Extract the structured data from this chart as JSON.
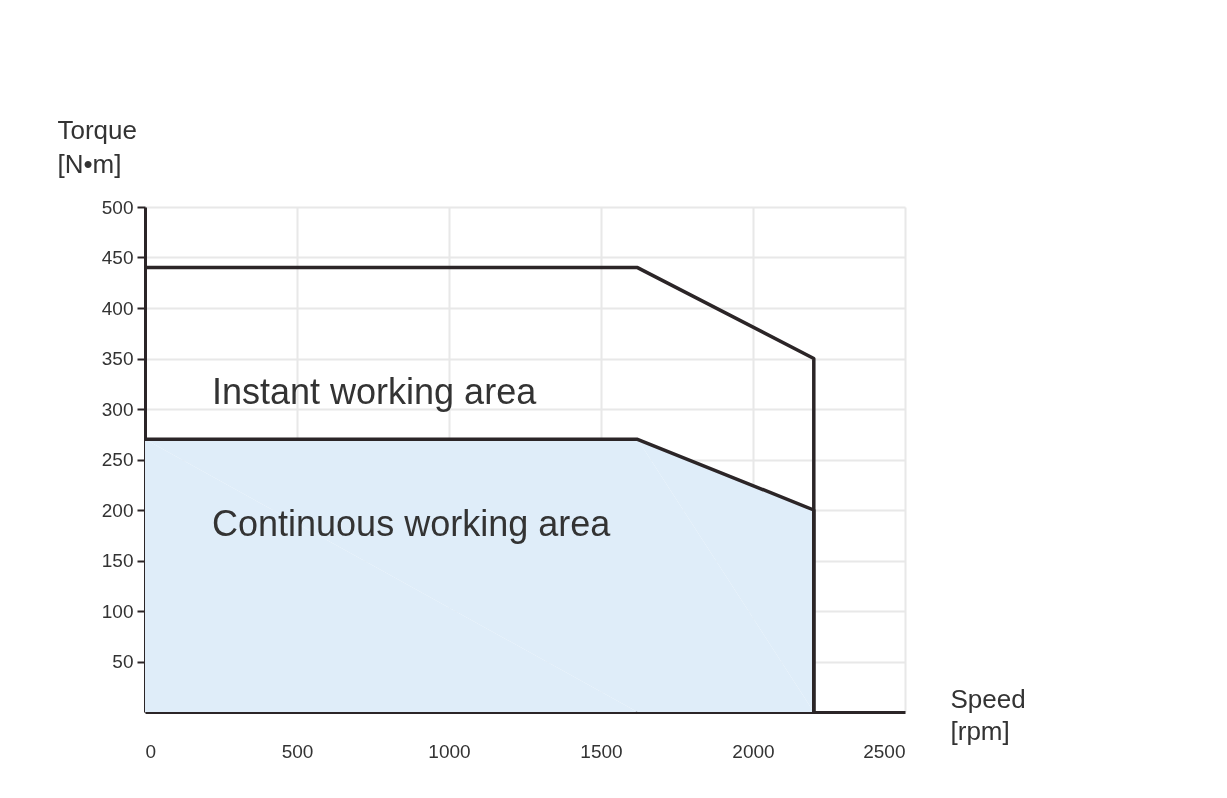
{
  "chart_data": {
    "type": "line",
    "xlabel": "Speed\n[rpm]",
    "ylabel": "Torque\n[N•m]",
    "xlim": [
      0,
      2500
    ],
    "xticks": [
      0,
      500,
      1000,
      1500,
      2000,
      2500
    ],
    "ylim": [
      0,
      500
    ],
    "yticks": [
      50,
      100,
      150,
      200,
      250,
      300,
      350,
      400,
      450,
      500
    ],
    "grid": true,
    "marker": "none",
    "line_style": "solid",
    "series": [
      {
        "color": "#2b2527",
        "x": [
          0,
          1620,
          2200,
          2200
        ],
        "values": [
          440,
          440,
          350,
          0
        ]
      },
      {
        "type": "area",
        "color": "#dfedf9",
        "x": [
          0,
          1620,
          2200,
          2200
        ],
        "values": [
          270,
          270,
          200,
          0
        ]
      }
    ],
    "annotations": [
      "Instant working area",
      "Continuous working area"
    ]
  }
}
